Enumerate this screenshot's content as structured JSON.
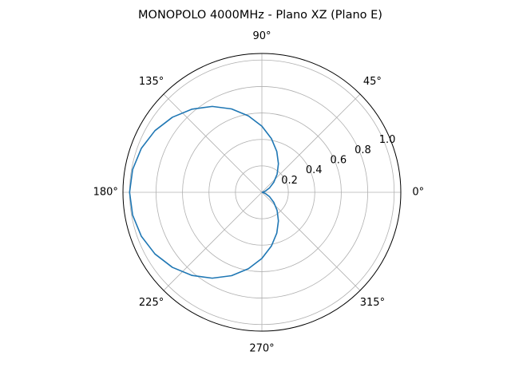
{
  "chart_data": {
    "type": "line",
    "projection": "polar",
    "title": "MONOPOLO 4000MHz - Plano XZ (Plano E)",
    "angle_ticks_deg": [
      0,
      45,
      90,
      135,
      180,
      225,
      270,
      315
    ],
    "angle_tick_labels": [
      "0°",
      "45°",
      "90°",
      "135°",
      "180°",
      "225°",
      "270°",
      "315°"
    ],
    "radial_ticks": [
      0.2,
      0.4,
      0.6,
      0.8,
      1.0
    ],
    "radial_tick_labels": [
      "0.2",
      "0.4",
      "0.6",
      "0.8",
      "1.0"
    ],
    "rlim": [
      0,
      1.05
    ],
    "radial_label_angle_deg": 22.5,
    "grid": true,
    "legend": "none",
    "series": [
      {
        "color": "#1f77b4",
        "theta_deg": [
          0,
          10,
          20,
          30,
          40,
          50,
          60,
          70,
          80,
          90,
          100,
          110,
          120,
          130,
          140,
          150,
          160,
          170,
          180,
          190,
          200,
          210,
          220,
          230,
          240,
          250,
          260,
          270,
          280,
          290,
          300,
          310,
          320,
          330,
          340,
          350,
          360
        ],
        "r": [
          0.0,
          0.008,
          0.03,
          0.067,
          0.117,
          0.179,
          0.25,
          0.329,
          0.413,
          0.5,
          0.587,
          0.671,
          0.75,
          0.821,
          0.883,
          0.933,
          0.97,
          0.992,
          1.0,
          0.992,
          0.97,
          0.933,
          0.883,
          0.821,
          0.75,
          0.671,
          0.587,
          0.5,
          0.413,
          0.329,
          0.25,
          0.179,
          0.117,
          0.067,
          0.03,
          0.008,
          0.0
        ]
      }
    ]
  }
}
